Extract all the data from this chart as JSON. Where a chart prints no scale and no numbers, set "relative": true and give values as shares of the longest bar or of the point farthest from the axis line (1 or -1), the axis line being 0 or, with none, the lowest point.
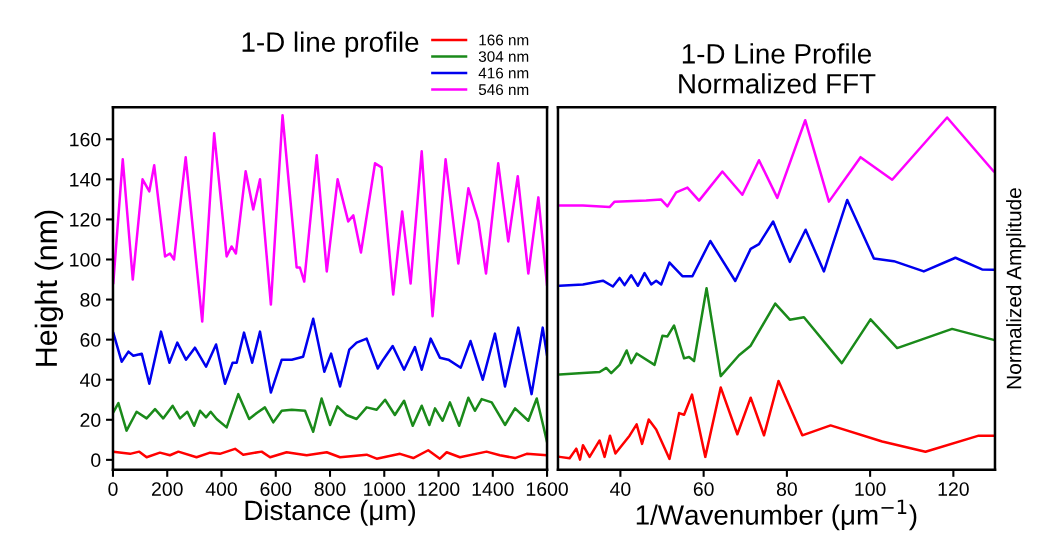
{
  "chart_data": [
    {
      "type": "line",
      "title": "1-D line profile",
      "xlabel": "Distance (μm)",
      "ylabel": "Height (nm)",
      "xlim": [
        0,
        1600
      ],
      "xticks": [
        0,
        200,
        400,
        600,
        800,
        1000,
        1200,
        1400,
        1600
      ],
      "ylim": [
        -5,
        176
      ],
      "yticks": [
        0,
        20,
        40,
        60,
        80,
        100,
        120,
        140,
        160
      ],
      "grid": false,
      "legend": "top right",
      "marker": "none",
      "line_style": "solid",
      "series": [
        {
          "name": "166 nm",
          "color": "#ff0000",
          "x": [
            1,
            63,
            97,
            124,
            173,
            210,
            241,
            308,
            358,
            394,
            450,
            480,
            548,
            579,
            640,
            714,
            788,
            837,
            935,
            972,
            1058,
            1107,
            1162,
            1205,
            1230,
            1279,
            1377,
            1426,
            1482,
            1525,
            1600
          ],
          "values": [
            4,
            3,
            4.1,
            1.3,
            3.6,
            2.3,
            4.1,
            1.3,
            3.6,
            3,
            5.5,
            2.6,
            4.1,
            1.3,
            3.8,
            2.3,
            3.8,
            1.3,
            2.6,
            0.6,
            3,
            0.9,
            4.8,
            0.6,
            3.8,
            1.3,
            4.1,
            2.3,
            0.9,
            3,
            2.3
          ]
        },
        {
          "name": "304 nm",
          "color": "#1a8a1a",
          "x": [
            1,
            20,
            50,
            87,
            124,
            155,
            185,
            220,
            247,
            274,
            299,
            321,
            343,
            360,
            382,
            419,
            462,
            502,
            530,
            560,
            591,
            622,
            659,
            708,
            738,
            769,
            800,
            827,
            861,
            898,
            935,
            972,
            1003,
            1039,
            1073,
            1105,
            1138,
            1166,
            1187,
            1215,
            1242,
            1276,
            1310,
            1334,
            1359,
            1396,
            1445,
            1482,
            1531,
            1562,
            1586,
            1600
          ],
          "values": [
            23.7,
            28.3,
            14.6,
            24,
            20.7,
            25.3,
            20.7,
            27,
            20.7,
            24,
            17,
            24.5,
            21.2,
            24,
            20.4,
            16.2,
            32.8,
            20.4,
            23.4,
            26.2,
            18.7,
            24.5,
            25,
            24.5,
            14,
            30.6,
            17.4,
            26.7,
            22.4,
            20.4,
            26.2,
            25,
            30,
            22.4,
            29.5,
            17,
            27,
            17.4,
            25.7,
            19.5,
            28.7,
            17,
            31,
            24.5,
            30.3,
            28.7,
            17.4,
            25.7,
            19.5,
            30.6,
            17,
            8.8
          ]
        },
        {
          "name": "416 nm",
          "color": "#0000ee",
          "x": [
            1,
            32,
            57,
            75,
            106,
            134,
            177,
            208,
            237,
            269,
            302,
            343,
            380,
            413,
            441,
            456,
            483,
            513,
            542,
            582,
            622,
            659,
            701,
            738,
            779,
            804,
            837,
            871,
            898,
            935,
            976,
            996,
            1031,
            1073,
            1113,
            1138,
            1171,
            1205,
            1236,
            1282,
            1318,
            1363,
            1408,
            1445,
            1494,
            1543,
            1584,
            1600
          ],
          "values": [
            63.5,
            49,
            54,
            52,
            53,
            38,
            64,
            48.5,
            58.5,
            50,
            56,
            46.5,
            57.6,
            38,
            48.5,
            48.5,
            63.5,
            48.5,
            64,
            33.6,
            50,
            50,
            51.5,
            70.4,
            44,
            53,
            36.6,
            55,
            58.5,
            60.5,
            45.6,
            50,
            56.8,
            45,
            56.3,
            45,
            60.5,
            51,
            50,
            46,
            59.3,
            40,
            63,
            36.6,
            66,
            32.8,
            66,
            52
          ]
        },
        {
          "name": "546 nm",
          "color": "#ff00ff",
          "x": [
            1,
            36,
            73,
            109,
            134,
            152,
            192,
            210,
            225,
            268,
            329,
            373,
            419,
            437,
            453,
            489,
            517,
            542,
            582,
            625,
            677,
            689,
            705,
            751,
            788,
            828,
            867,
            886,
            914,
            966,
            990,
            1033,
            1066,
            1097,
            1138,
            1178,
            1226,
            1273,
            1310,
            1347,
            1375,
            1420,
            1457,
            1492,
            1531,
            1568,
            1600
          ],
          "values": [
            88,
            150,
            90,
            140,
            134,
            147,
            101.5,
            103,
            100,
            151,
            69,
            163,
            101.5,
            106.5,
            103,
            144,
            125,
            140,
            77.5,
            172,
            96,
            96,
            89,
            152,
            94,
            140,
            119,
            122,
            103.5,
            148,
            146,
            82.5,
            124,
            88,
            154,
            71.7,
            150,
            98,
            135.5,
            119,
            93,
            148,
            109,
            141.6,
            93,
            131,
            87
          ]
        }
      ]
    },
    {
      "type": "line",
      "title": "1-D Line Profile\nNormalized FFT",
      "xlabel": "1/Wavenumber (μm$^{−1}$)",
      "ylabel": "Normalized Amplitude",
      "relative": true,
      "xlim": [
        25,
        130
      ],
      "xticks": [
        40,
        60,
        80,
        100,
        120
      ],
      "grid": false,
      "marker": "none",
      "line_style": "solid",
      "series": [
        {
          "color": "#ff0000",
          "x": [
            25.4,
            27.8,
            29.4,
            30.3,
            31,
            32.6,
            35,
            36.2,
            37.5,
            38.8,
            42.2,
            43.9,
            45.2,
            46.8,
            48.6,
            51.8,
            54.1,
            55.3,
            57.2,
            60.4,
            64.1,
            68.1,
            71.3,
            74.5,
            78,
            83.7,
            90.5,
            102.9,
            113.3,
            126.1,
            129.7
          ],
          "values": [
            0.008,
            0.004,
            0.032,
            0,
            0.042,
            0.008,
            0.056,
            0.008,
            0.07,
            0.018,
            0.07,
            0.103,
            0.046,
            0.117,
            0.088,
            0.002,
            0.136,
            0.131,
            0.19,
            0.008,
            0.211,
            0.074,
            0.181,
            0.071,
            0.23,
            0.071,
            0.1,
            0.053,
            0.023,
            0.07,
            0.07
          ]
        },
        {
          "color": "#1a8a1a",
          "x": [
            25.4,
            31,
            35,
            36.6,
            37.8,
            39.8,
            41.5,
            42.6,
            43.9,
            48.2,
            50.1,
            51.3,
            52.9,
            55.3,
            56.5,
            57.7,
            60.7,
            64.1,
            68.5,
            71.3,
            77.2,
            80.7,
            84.1,
            93.2,
            100.1,
            106.5,
            119.7,
            129.7
          ],
          "values": [
            0.249,
            0.253,
            0.256,
            0.268,
            0.253,
            0.277,
            0.319,
            0.282,
            0.31,
            0.277,
            0.362,
            0.36,
            0.392,
            0.296,
            0.3,
            0.288,
            0.501,
            0.244,
            0.305,
            0.333,
            0.456,
            0.409,
            0.416,
            0.282,
            0.41,
            0.326,
            0.382,
            0.35
          ]
        },
        {
          "color": "#0000ee",
          "x": [
            25.4,
            31,
            35.8,
            38.2,
            39.8,
            41,
            42.6,
            44.2,
            45.8,
            47.4,
            48.6,
            49.8,
            51.8,
            54.9,
            57.3,
            61.6,
            67.6,
            71.3,
            73.3,
            76.7,
            80.7,
            84.5,
            88.9,
            94.5,
            100.9,
            105.7,
            112.9,
            120.5,
            126.9,
            129.7
          ],
          "values": [
            0.508,
            0.512,
            0.523,
            0.506,
            0.531,
            0.51,
            0.539,
            0.508,
            0.545,
            0.512,
            0.523,
            0.512,
            0.576,
            0.536,
            0.536,
            0.639,
            0.522,
            0.616,
            0.63,
            0.696,
            0.578,
            0.672,
            0.55,
            0.759,
            0.588,
            0.58,
            0.55,
            0.59,
            0.556,
            0.555
          ]
        },
        {
          "color": "#ff00ff",
          "x": [
            25.4,
            31,
            37.4,
            38.6,
            46.2,
            49.8,
            51.3,
            53.4,
            56.1,
            58.9,
            64.5,
            69.3,
            73.3,
            77.7,
            84.4,
            90.1,
            97.7,
            105.3,
            118.5,
            129.7
          ],
          "values": [
            0.743,
            0.743,
            0.738,
            0.754,
            0.757,
            0.76,
            0.74,
            0.781,
            0.795,
            0.757,
            0.842,
            0.774,
            0.875,
            0.765,
            0.992,
            0.754,
            0.884,
            0.818,
            1.0,
            0.842
          ]
        }
      ]
    }
  ]
}
